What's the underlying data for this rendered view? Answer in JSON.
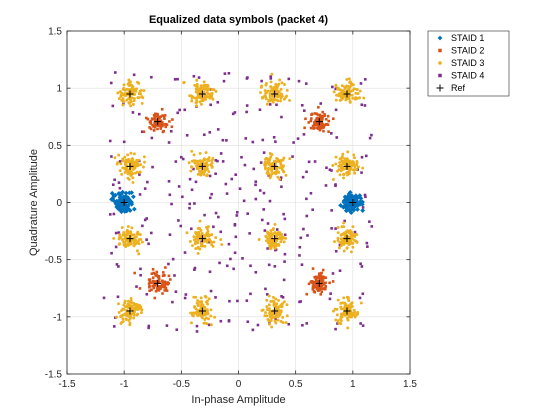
{
  "chart_data": {
    "type": "scatter",
    "title": "Equalized data symbols (packet 4)",
    "xlabel": "In-phase Amplitude",
    "ylabel": "Quadrature Amplitude",
    "xlim": [
      -1.5,
      1.5
    ],
    "ylim": [
      -1.5,
      1.5
    ],
    "xticks": [
      -1.5,
      -1,
      -0.5,
      0,
      0.5,
      1,
      1.5
    ],
    "yticks": [
      -1.5,
      -1,
      -0.5,
      0,
      0.5,
      1,
      1.5
    ],
    "xtick_labels": [
      "-1.5",
      "-1",
      "-0.5",
      "0",
      "0.5",
      "1",
      "1.5"
    ],
    "ytick_labels": [
      "-1.5",
      "-1",
      "-0.5",
      "0",
      "0.5",
      "1",
      "1.5"
    ],
    "grid": true,
    "legend_placement": "outside-top-right",
    "series": [
      {
        "name": "STAID 1",
        "marker": "diamond",
        "color": "#0072BD",
        "spread": 0.04,
        "points_per_cluster": 90,
        "centers": [
          [
            -1,
            0
          ],
          [
            1,
            0
          ]
        ]
      },
      {
        "name": "STAID 2",
        "marker": "square",
        "color": "#D95319",
        "spread": 0.045,
        "points_per_cluster": 80,
        "centers": [
          [
            -0.707,
            0.707
          ],
          [
            0.707,
            0.707
          ],
          [
            -0.707,
            -0.707
          ],
          [
            0.707,
            -0.707
          ]
        ]
      },
      {
        "name": "STAID 3",
        "marker": "star",
        "color": "#EDB120",
        "spread": 0.05,
        "points_per_cluster": 90,
        "centers": [
          [
            -0.949,
            0.949
          ],
          [
            -0.316,
            0.949
          ],
          [
            0.316,
            0.949
          ],
          [
            0.949,
            0.949
          ],
          [
            -0.949,
            0.316
          ],
          [
            -0.316,
            0.316
          ],
          [
            0.316,
            0.316
          ],
          [
            0.949,
            0.316
          ],
          [
            -0.949,
            -0.316
          ],
          [
            -0.316,
            -0.316
          ],
          [
            0.316,
            -0.316
          ],
          [
            0.949,
            -0.316
          ],
          [
            -0.949,
            -0.949
          ],
          [
            -0.316,
            -0.949
          ],
          [
            0.316,
            -0.949
          ],
          [
            0.949,
            -0.949
          ]
        ]
      },
      {
        "name": "STAID 4",
        "marker": "square",
        "color": "#7E2F8E",
        "spread": 0.045,
        "points_per_cluster": 2,
        "grid_levels": [
          -1.08,
          -0.82,
          -0.57,
          -0.38,
          -0.23,
          -0.08,
          0.08,
          0.23,
          0.38,
          0.57,
          0.82,
          1.08
        ]
      },
      {
        "name": "Ref",
        "marker": "plus",
        "color": "#000000",
        "points": [
          [
            -1,
            0
          ],
          [
            1,
            0
          ],
          [
            -0.707,
            0.707
          ],
          [
            0.707,
            0.707
          ],
          [
            -0.707,
            -0.707
          ],
          [
            0.707,
            -0.707
          ],
          [
            -0.949,
            0.949
          ],
          [
            -0.316,
            0.949
          ],
          [
            0.316,
            0.949
          ],
          [
            0.949,
            0.949
          ],
          [
            -0.949,
            0.316
          ],
          [
            -0.316,
            0.316
          ],
          [
            0.316,
            0.316
          ],
          [
            0.949,
            0.316
          ],
          [
            -0.949,
            -0.316
          ],
          [
            -0.316,
            -0.316
          ],
          [
            0.316,
            -0.316
          ],
          [
            0.949,
            -0.316
          ],
          [
            -0.949,
            -0.949
          ],
          [
            -0.316,
            -0.949
          ],
          [
            0.316,
            -0.949
          ],
          [
            0.949,
            -0.949
          ]
        ]
      }
    ]
  }
}
